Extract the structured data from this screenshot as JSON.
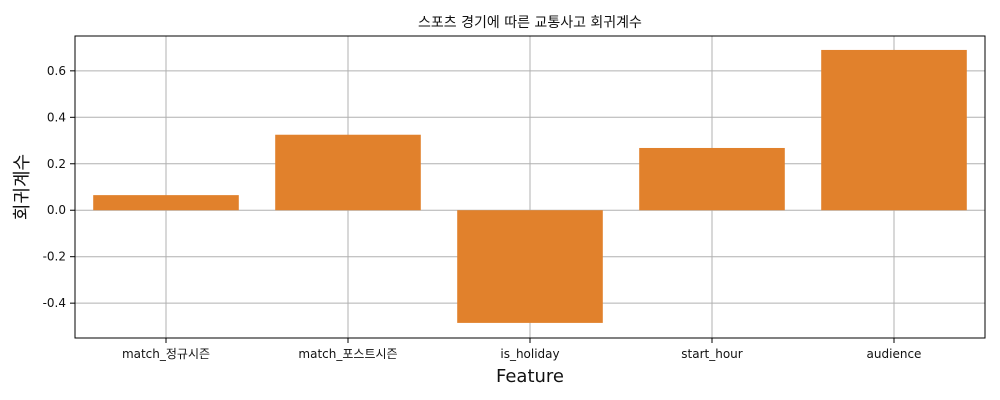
{
  "chart_data": {
    "type": "bar",
    "title": "스포츠 경기에 따른 교통사고 회귀계수",
    "xlabel": "Feature",
    "ylabel": "회귀계수",
    "categories": [
      "match_정규시즌",
      "match_포스트시즌",
      "is_holiday",
      "start_hour",
      "audience"
    ],
    "values": [
      0.065,
      0.325,
      -0.485,
      0.268,
      0.69
    ],
    "ylim": [
      -0.55,
      0.75
    ],
    "yticks": [
      -0.4,
      -0.2,
      0.0,
      0.2,
      0.4,
      0.6
    ],
    "ytick_labels": [
      "-0.4",
      "-0.2",
      "0.0",
      "0.2",
      "0.4",
      "0.6"
    ],
    "grid": true,
    "bar_color": "#e1812c"
  }
}
